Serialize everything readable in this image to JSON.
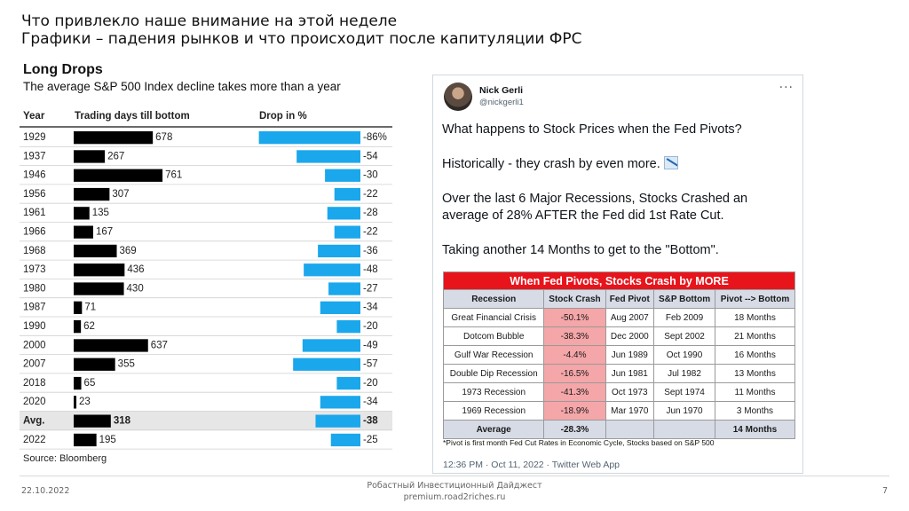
{
  "slide": {
    "title_line1": "Что привлекло наше внимание на этой неделе",
    "title_line2": "Графики – падения рынков и что происходит после капитуляции ФРС"
  },
  "chart_data": {
    "type": "bar",
    "title": "Long Drops",
    "subtitle": "The average S&P 500 Index decline takes more than a year",
    "source": "Source: Bloomberg",
    "columns": [
      "Year",
      "Trading days till bottom",
      "Drop in %"
    ],
    "rows": [
      {
        "year": "1929",
        "days": 678,
        "days_label": "678",
        "drop": -86,
        "drop_label": "-86%",
        "highlight": false
      },
      {
        "year": "1937",
        "days": 267,
        "days_label": "267",
        "drop": -54,
        "drop_label": "-54",
        "highlight": false
      },
      {
        "year": "1946",
        "days": 761,
        "days_label": "761",
        "drop": -30,
        "drop_label": "-30",
        "highlight": false
      },
      {
        "year": "1956",
        "days": 307,
        "days_label": "307",
        "drop": -22,
        "drop_label": "-22",
        "highlight": false
      },
      {
        "year": "1961",
        "days": 135,
        "days_label": "135",
        "drop": -28,
        "drop_label": "-28",
        "highlight": false
      },
      {
        "year": "1966",
        "days": 167,
        "days_label": "167",
        "drop": -22,
        "drop_label": "-22",
        "highlight": false
      },
      {
        "year": "1968",
        "days": 369,
        "days_label": "369",
        "drop": -36,
        "drop_label": "-36",
        "highlight": false
      },
      {
        "year": "1973",
        "days": 436,
        "days_label": "436",
        "drop": -48,
        "drop_label": "-48",
        "highlight": false
      },
      {
        "year": "1980",
        "days": 430,
        "days_label": "430",
        "drop": -27,
        "drop_label": "-27",
        "highlight": false
      },
      {
        "year": "1987",
        "days": 71,
        "days_label": "71",
        "drop": -34,
        "drop_label": "-34",
        "highlight": false
      },
      {
        "year": "1990",
        "days": 62,
        "days_label": "62",
        "drop": -20,
        "drop_label": "-20",
        "highlight": false
      },
      {
        "year": "2000",
        "days": 637,
        "days_label": "637",
        "drop": -49,
        "drop_label": "-49",
        "highlight": false
      },
      {
        "year": "2007",
        "days": 355,
        "days_label": "355",
        "drop": -57,
        "drop_label": "-57",
        "highlight": false
      },
      {
        "year": "2018",
        "days": 65,
        "days_label": "65",
        "drop": -20,
        "drop_label": "-20",
        "highlight": false
      },
      {
        "year": "2020",
        "days": 23,
        "days_label": "23",
        "drop": -34,
        "drop_label": "-34",
        "highlight": false
      },
      {
        "year": "Avg.",
        "days": 318,
        "days_label": "318",
        "drop": -38,
        "drop_label": "-38",
        "highlight": true
      },
      {
        "year": "2022",
        "days": 195,
        "days_label": "195",
        "drop": -25,
        "drop_label": "-25",
        "highlight": false
      }
    ],
    "colors": {
      "days_bar": "#000000",
      "drop_bar": "#1aa7ec",
      "highlight_row": "#e6e6e6"
    }
  },
  "tweet": {
    "name": "Nick Gerli",
    "handle": "@nickgerli1",
    "more_label": "···",
    "line1": "What happens to Stock Prices when the Fed Pivots?",
    "line2": "Historically - they crash by even more.",
    "line2_icon": "chart-decreasing-icon",
    "line3": "Over the last 6 Major Recessions, Stocks Crashed an average of 28% AFTER the Fed did 1st Rate Cut.",
    "line4": "Taking another 14 Months to get to the \"Bottom\".",
    "timestamp": "12:36 PM · Oct 11, 2022 · Twitter Web App",
    "table": {
      "banner": "When Fed Pivots, Stocks Crash by MORE",
      "headers": [
        "Recession",
        "Stock Crash",
        "Fed Pivot",
        "S&P Bottom",
        "Pivot --> Bottom"
      ],
      "rows": [
        [
          "Great Financial Crisis",
          "-50.1%",
          "Aug 2007",
          "Feb 2009",
          "18 Months"
        ],
        [
          "Dotcom Bubble",
          "-38.3%",
          "Dec 2000",
          "Sept 2002",
          "21 Months"
        ],
        [
          "Gulf War Recession",
          "-4.4%",
          "Jun 1989",
          "Oct 1990",
          "16 Months"
        ],
        [
          "Double Dip Recession",
          "-16.5%",
          "Jun 1981",
          "Jul 1982",
          "13 Months"
        ],
        [
          "1973 Recession",
          "-41.3%",
          "Oct 1973",
          "Sept 1974",
          "11 Months"
        ],
        [
          "1969 Recession",
          "-18.9%",
          "Mar 1970",
          "Jun 1970",
          "3 Months"
        ]
      ],
      "average": [
        "Average",
        "-28.3%",
        "",
        "",
        "14 Months"
      ],
      "footnote": "*Pivot is first month Fed Cut Rates in Economic Cycle, Stocks based on S&P 500",
      "colors": {
        "banner": "#e8141c",
        "crash_cell": "#f4a6a8",
        "header": "#d6dbe6"
      }
    }
  },
  "footer": {
    "date": "22.10.2022",
    "center_line1": "Робастный Инвестиционный Дайджест",
    "center_line2": "premium.road2riches.ru",
    "page": "7"
  }
}
